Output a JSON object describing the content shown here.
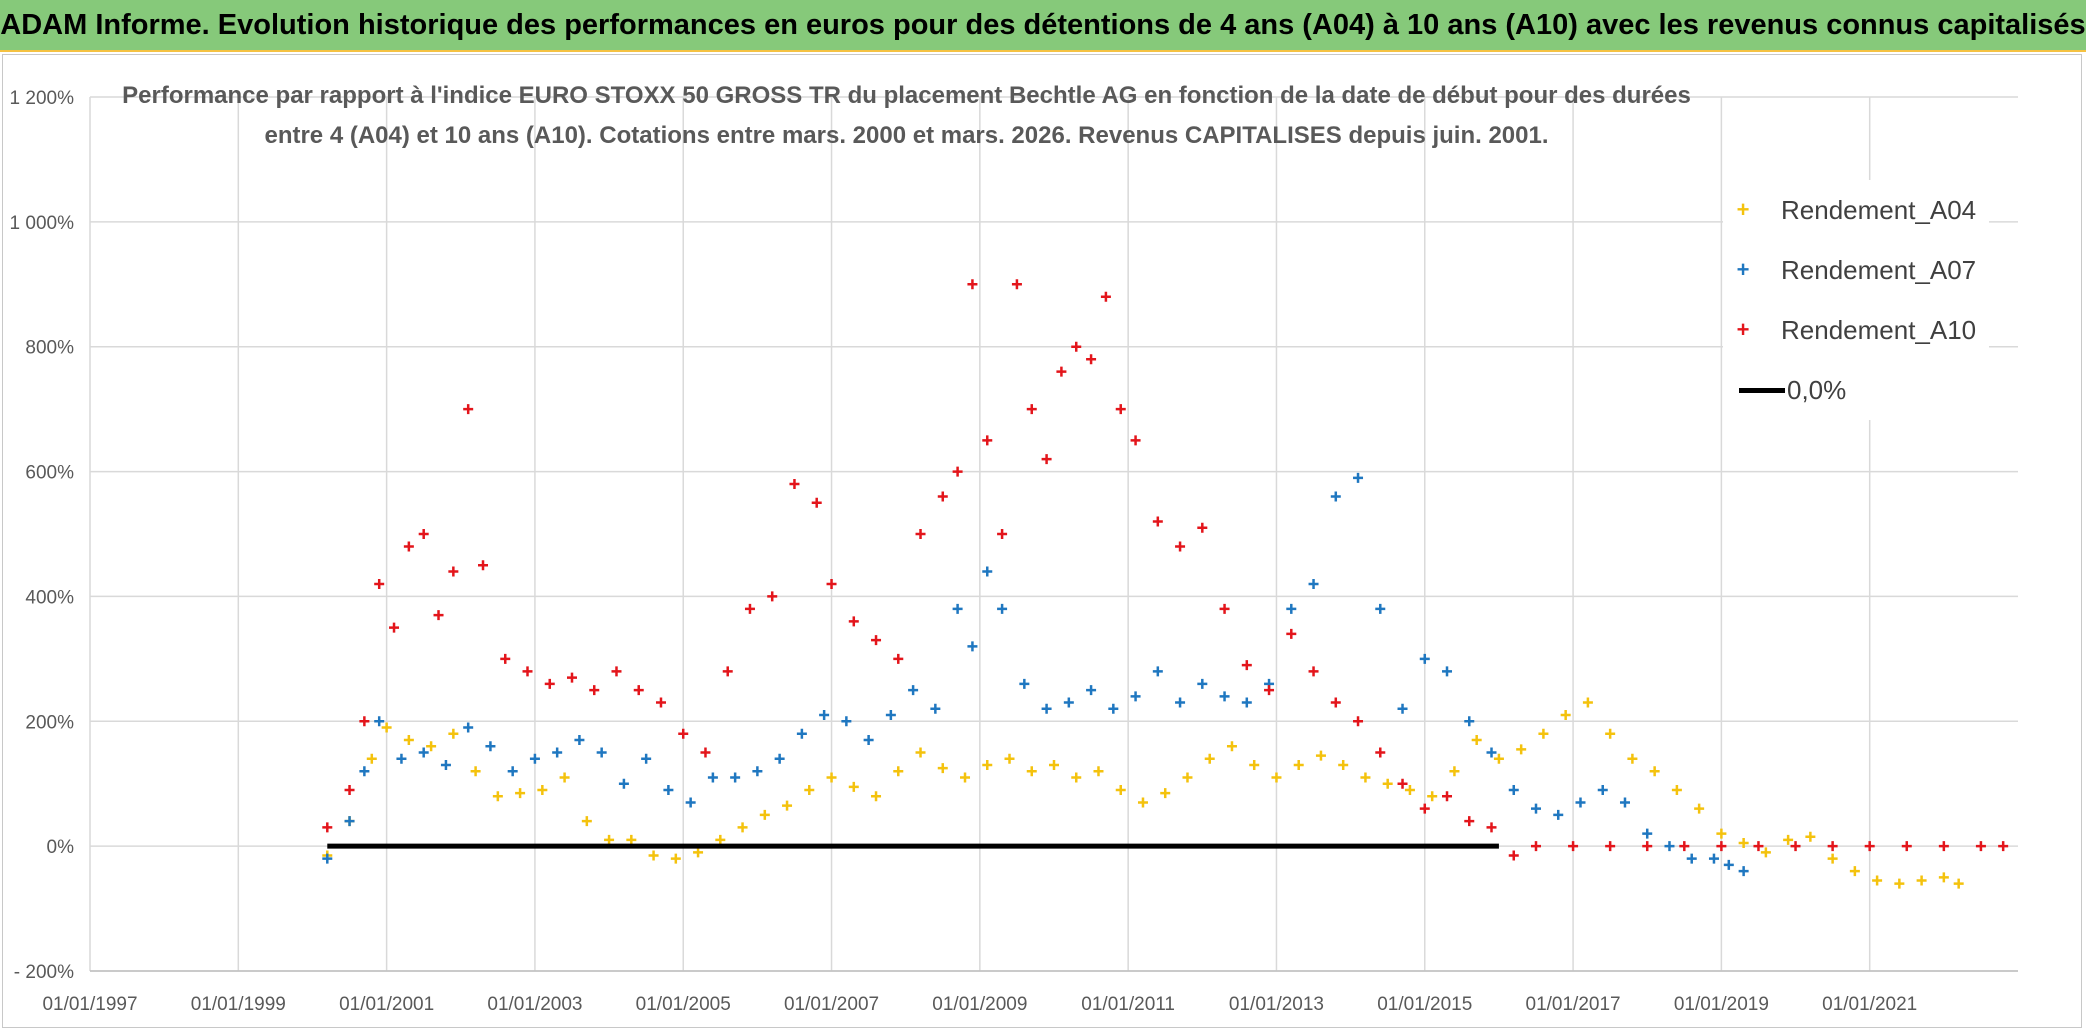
{
  "banner": {
    "title": "ADAM Informe. Evolution historique des performances en euros pour des détentions de 4 ans (A04) à 10 ans (A10) avec les revenus connus capitalisés"
  },
  "chart_data": {
    "type": "scatter",
    "title_line1": "Performance  par rapport à l'indice EURO STOXX 50 GROSS TR  du placement Bechtle AG en fonction de la date de début pour des durées",
    "title_line2": "entre 4 (A04) et 10 ans (A10). Cotations entre mars. 2000 et mars. 2026. Revenus CAPITALISES depuis juin. 2001.",
    "xlabel": "",
    "ylabel": "",
    "xlim": [
      1997.0,
      2023.0
    ],
    "ylim": [
      -200,
      1200
    ],
    "x_ticks": [
      "01/01/1997",
      "01/01/1999",
      "01/01/2001",
      "01/01/2003",
      "01/01/2005",
      "01/01/2007",
      "01/01/2009",
      "01/01/2011",
      "01/01/2013",
      "01/01/2015",
      "01/01/2017",
      "01/01/2019",
      "01/01/2021"
    ],
    "x_tick_values": [
      1997,
      1999,
      2001,
      2003,
      2005,
      2007,
      2009,
      2011,
      2013,
      2015,
      2017,
      2019,
      2021
    ],
    "y_ticks": [
      "- 200%",
      "0%",
      "200%",
      "400%",
      "600%",
      "800%",
      "1 000%",
      "1 200%"
    ],
    "y_tick_values": [
      -200,
      0,
      200,
      400,
      600,
      800,
      1000,
      1200
    ],
    "legend_position": "top-right",
    "series": [
      {
        "name": "Rendement_A04",
        "color": "#f4c20d",
        "marker": "+",
        "x": [
          2000.2,
          2000.5,
          2000.8,
          2001.0,
          2001.3,
          2001.6,
          2001.9,
          2002.2,
          2002.5,
          2002.8,
          2003.1,
          2003.4,
          2003.7,
          2004.0,
          2004.3,
          2004.6,
          2004.9,
          2005.2,
          2005.5,
          2005.8,
          2006.1,
          2006.4,
          2006.7,
          2007.0,
          2007.3,
          2007.6,
          2007.9,
          2008.2,
          2008.5,
          2008.8,
          2009.1,
          2009.4,
          2009.7,
          2010.0,
          2010.3,
          2010.6,
          2010.9,
          2011.2,
          2011.5,
          2011.8,
          2012.1,
          2012.4,
          2012.7,
          2013.0,
          2013.3,
          2013.6,
          2013.9,
          2014.2,
          2014.5,
          2014.8,
          2015.1,
          2015.4,
          2015.7,
          2016.0,
          2016.3,
          2016.6,
          2016.9,
          2017.2,
          2017.5,
          2017.8,
          2018.1,
          2018.4,
          2018.7,
          2019.0,
          2019.3,
          2019.6,
          2019.9,
          2020.2,
          2020.5,
          2020.8,
          2021.1,
          2021.4,
          2021.7,
          2022.0,
          2022.2
        ],
        "values": [
          -15,
          40,
          140,
          190,
          170,
          160,
          180,
          120,
          80,
          85,
          90,
          110,
          40,
          10,
          10,
          -15,
          -20,
          -10,
          10,
          30,
          50,
          65,
          90,
          110,
          95,
          80,
          120,
          150,
          125,
          110,
          130,
          140,
          120,
          130,
          110,
          120,
          90,
          70,
          85,
          110,
          140,
          160,
          130,
          110,
          130,
          145,
          130,
          110,
          100,
          90,
          80,
          120,
          170,
          140,
          155,
          180,
          210,
          230,
          180,
          140,
          120,
          90,
          60,
          20,
          5,
          -10,
          10,
          15,
          -20,
          -40,
          -55,
          -60,
          -55,
          -50,
          -60
        ]
      },
      {
        "name": "Rendement_A07",
        "color": "#1f77c0",
        "marker": "+",
        "x": [
          2000.2,
          2000.5,
          2000.7,
          2000.9,
          2001.2,
          2001.5,
          2001.8,
          2002.1,
          2002.4,
          2002.7,
          2003.0,
          2003.3,
          2003.6,
          2003.9,
          2004.2,
          2004.5,
          2004.8,
          2005.1,
          2005.4,
          2005.7,
          2006.0,
          2006.3,
          2006.6,
          2006.9,
          2007.2,
          2007.5,
          2007.8,
          2008.1,
          2008.4,
          2008.7,
          2008.9,
          2009.1,
          2009.3,
          2009.6,
          2009.9,
          2010.2,
          2010.5,
          2010.8,
          2011.1,
          2011.4,
          2011.7,
          2012.0,
          2012.3,
          2012.6,
          2012.9,
          2013.2,
          2013.5,
          2013.8,
          2014.1,
          2014.4,
          2014.7,
          2015.0,
          2015.3,
          2015.6,
          2015.9,
          2016.2,
          2016.5,
          2016.8,
          2017.1,
          2017.4,
          2017.7,
          2018.0,
          2018.3,
          2018.6,
          2018.9,
          2019.1,
          2019.3
        ],
        "values": [
          -20,
          40,
          120,
          200,
          140,
          150,
          130,
          190,
          160,
          120,
          140,
          150,
          170,
          150,
          100,
          140,
          90,
          70,
          110,
          110,
          120,
          140,
          180,
          210,
          200,
          170,
          210,
          250,
          220,
          380,
          320,
          440,
          380,
          260,
          220,
          230,
          250,
          220,
          240,
          280,
          230,
          260,
          240,
          230,
          260,
          380,
          420,
          560,
          590,
          380,
          220,
          300,
          280,
          200,
          150,
          90,
          60,
          50,
          70,
          90,
          70,
          20,
          0,
          -20,
          -20,
          -30,
          -40
        ]
      },
      {
        "name": "Rendement_A10",
        "color": "#e3151b",
        "marker": "+",
        "x": [
          2000.2,
          2000.5,
          2000.7,
          2000.9,
          2001.1,
          2001.3,
          2001.5,
          2001.7,
          2001.9,
          2002.1,
          2002.3,
          2002.6,
          2002.9,
          2003.2,
          2003.5,
          2003.8,
          2004.1,
          2004.4,
          2004.7,
          2005.0,
          2005.3,
          2005.6,
          2005.9,
          2006.2,
          2006.5,
          2006.8,
          2007.0,
          2007.3,
          2007.6,
          2007.9,
          2008.2,
          2008.5,
          2008.7,
          2008.9,
          2009.1,
          2009.3,
          2009.5,
          2009.7,
          2009.9,
          2010.1,
          2010.3,
          2010.5,
          2010.7,
          2010.9,
          2011.1,
          2011.4,
          2011.7,
          2012.0,
          2012.3,
          2012.6,
          2012.9,
          2013.2,
          2013.5,
          2013.8,
          2014.1,
          2014.4,
          2014.7,
          2015.0,
          2015.3,
          2015.6,
          2015.9,
          2016.2,
          2016.5,
          2017.0,
          2017.5,
          2018.0,
          2018.5,
          2019.0,
          2019.5,
          2020.0,
          2020.5,
          2021.0,
          2021.5,
          2022.0,
          2022.5,
          2022.8
        ],
        "values": [
          30,
          90,
          200,
          420,
          350,
          480,
          500,
          370,
          440,
          700,
          450,
          300,
          280,
          260,
          270,
          250,
          280,
          250,
          230,
          180,
          150,
          280,
          380,
          400,
          580,
          550,
          420,
          360,
          330,
          300,
          500,
          560,
          600,
          900,
          650,
          500,
          900,
          700,
          620,
          760,
          800,
          780,
          880,
          700,
          650,
          520,
          480,
          510,
          380,
          290,
          250,
          340,
          280,
          230,
          200,
          150,
          100,
          60,
          80,
          40,
          30,
          -15,
          0,
          0,
          0,
          0,
          0,
          0,
          0,
          0,
          0,
          0,
          0,
          0,
          0,
          0
        ]
      },
      {
        "name": "0,0%",
        "color": "#000000",
        "marker": "line",
        "x": [
          2000.2,
          2016.0
        ],
        "values": [
          0,
          0
        ]
      }
    ]
  }
}
